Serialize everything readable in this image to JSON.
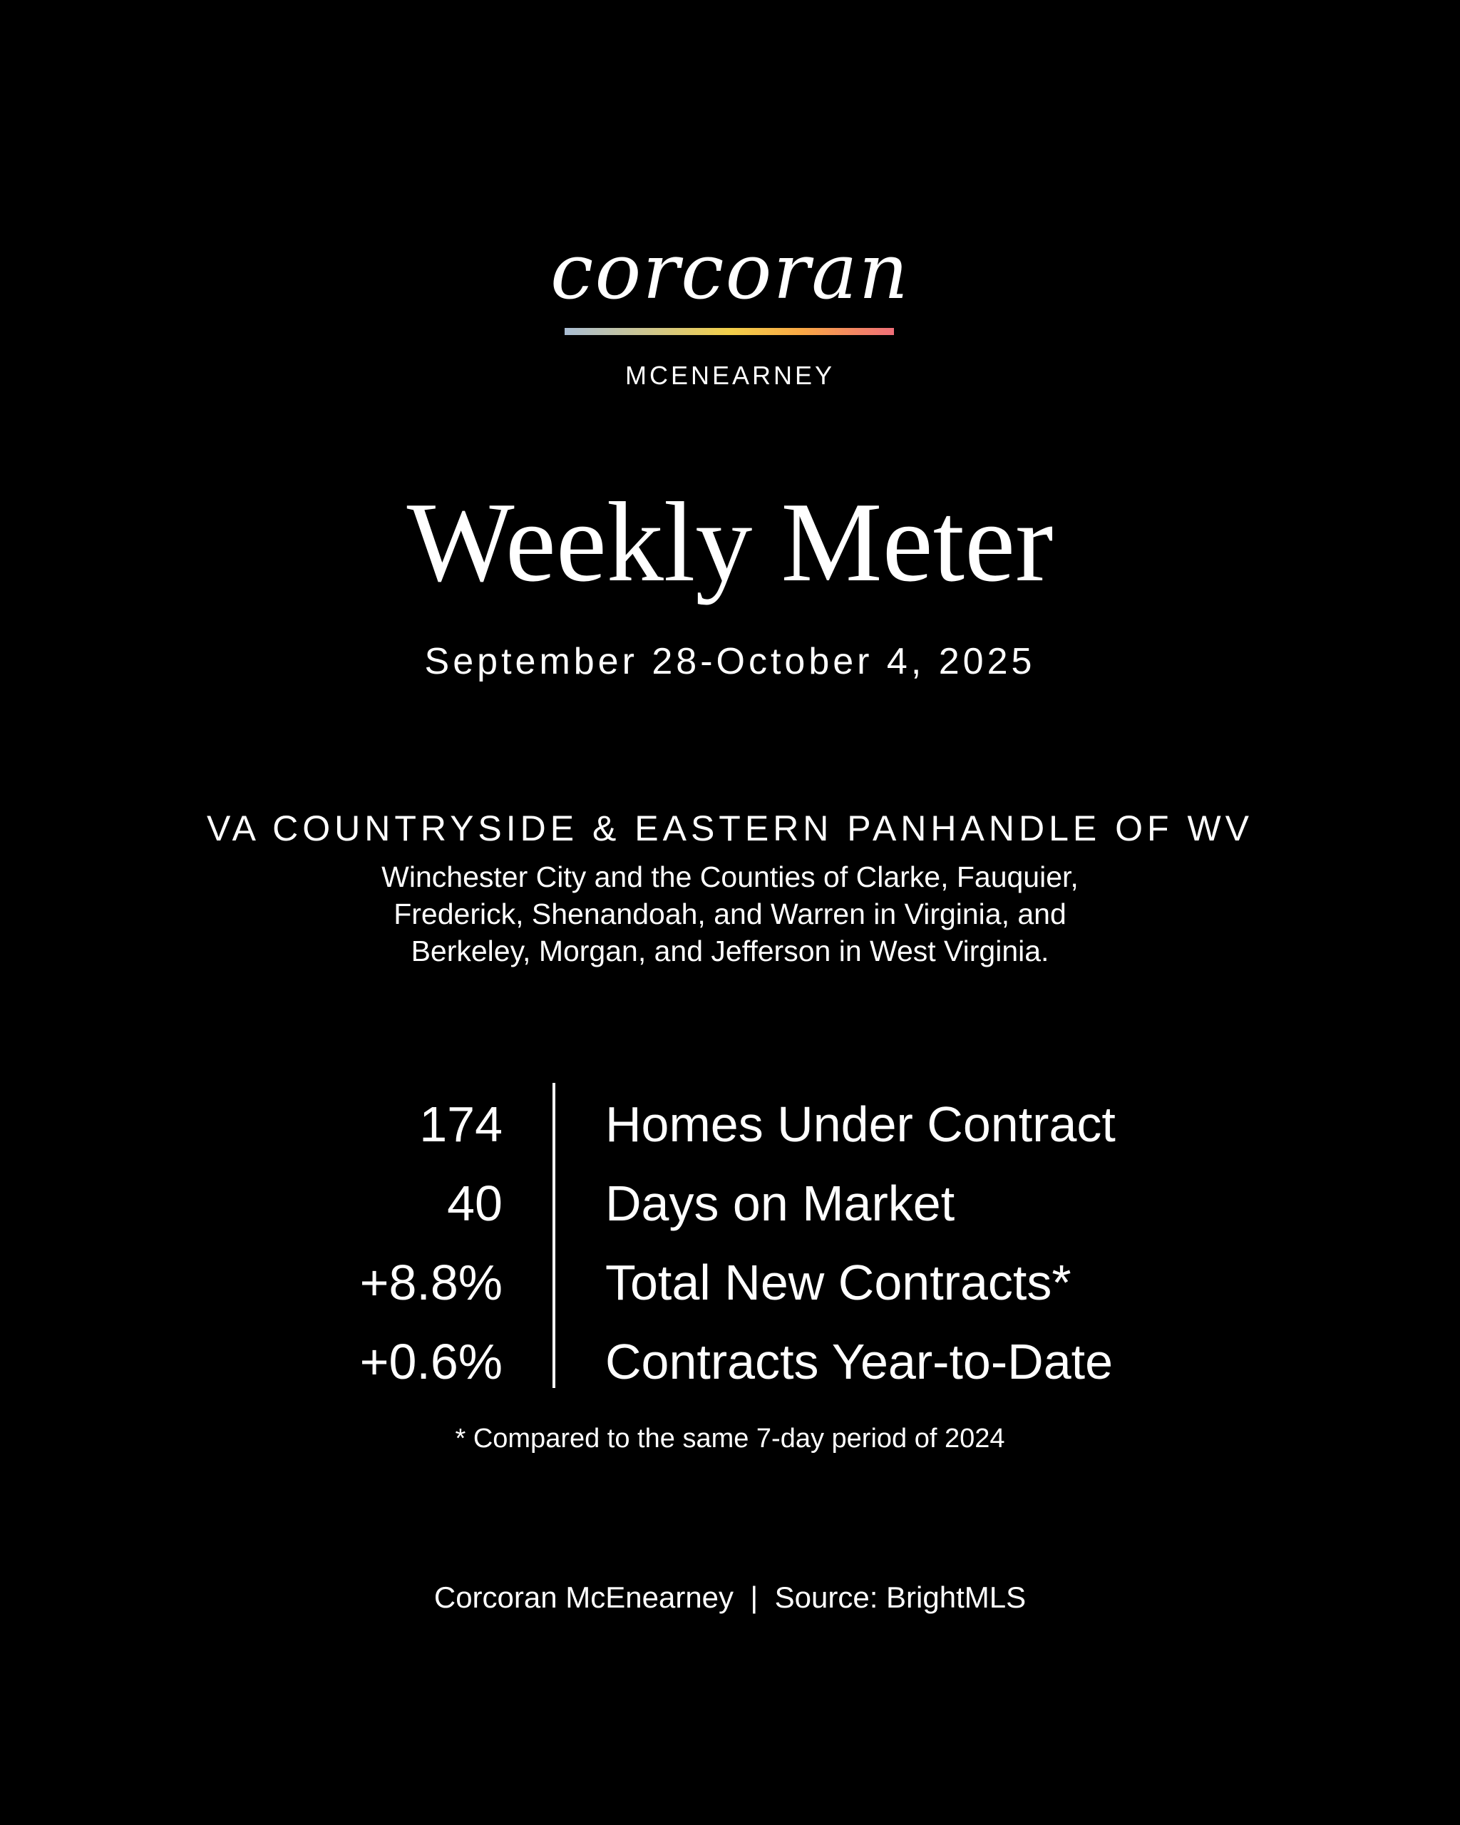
{
  "logo": {
    "wordmark": "corcoran",
    "subbrand": "MCENEARNEY",
    "gradient_colors": [
      "#a9bdd4",
      "#f2cf4a",
      "#f9a845",
      "#ef6e78"
    ]
  },
  "title": "Weekly Meter",
  "date_range": "September 28-October 4, 2025",
  "region": {
    "heading": "VA COUNTRYSIDE & EASTERN PANHANDLE OF WV",
    "description_lines": [
      "Winchester City and the Counties of Clarke, Fauquier,",
      "Frederick, Shenandoah, and Warren in Virginia, and",
      "Berkeley, Morgan, and Jefferson in West Virginia."
    ]
  },
  "stats": [
    {
      "value": "174",
      "label": "Homes Under Contract"
    },
    {
      "value": "40",
      "label": "Days on Market"
    },
    {
      "value": "+8.8%",
      "label": "Total New Contracts*"
    },
    {
      "value": "+0.6%",
      "label": "Contracts Year-to-Date"
    }
  ],
  "footnote": "* Compared to the same 7-day period of 2024",
  "footer": "Corcoran McEnearney  |  Source: BrightMLS"
}
